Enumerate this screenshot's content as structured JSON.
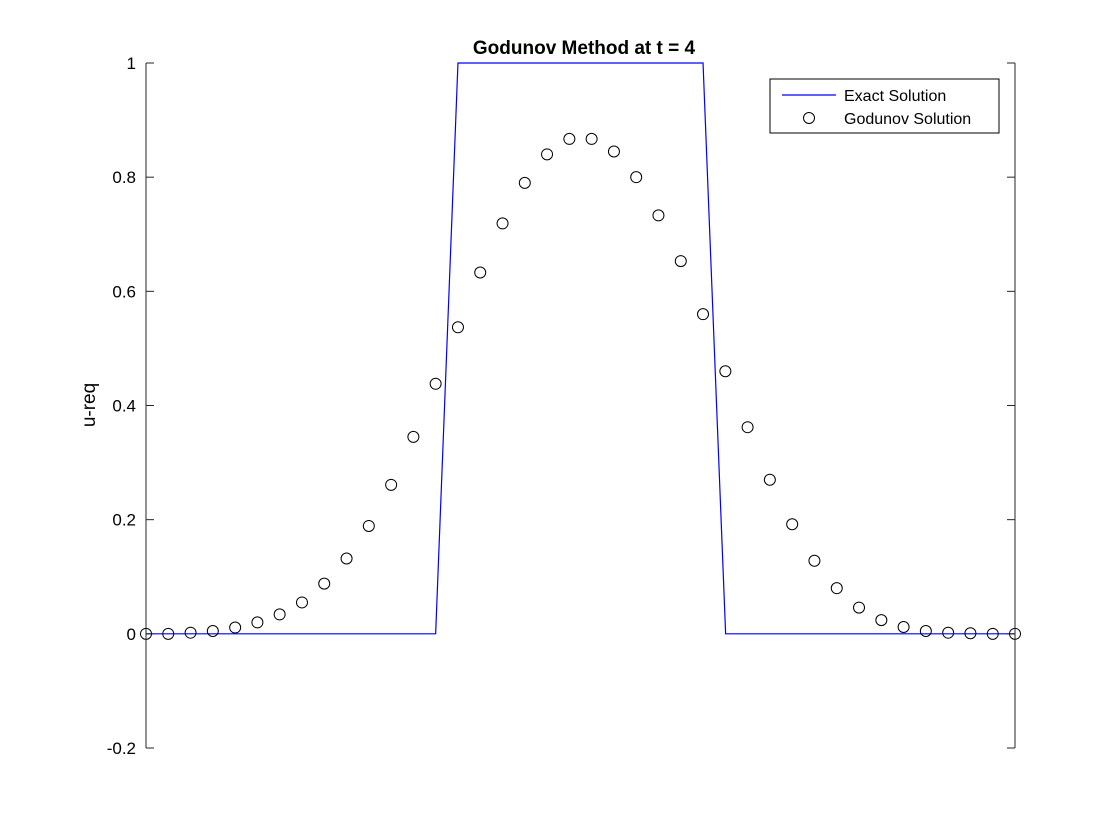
{
  "chart_data": {
    "type": "line",
    "title": "Godunov Method at t = 4",
    "xlabel": "",
    "ylabel": "u-req",
    "xlim": [
      0,
      1
    ],
    "ylim": [
      -0.2,
      1
    ],
    "yticks": [
      -0.2,
      0,
      0.2,
      0.4,
      0.6,
      0.8,
      1
    ],
    "ytick_labels": [
      "-0.2",
      "0",
      "0.2",
      "0.4",
      "0.6",
      "0.8",
      "1"
    ],
    "grid": false,
    "legend_position": "top-right",
    "series": [
      {
        "name": "Exact Solution",
        "style": "line",
        "color": "#0000ff",
        "x": [
          0.0,
          0.3333,
          0.359,
          0.641,
          0.667,
          1.0
        ],
        "y": [
          0,
          0,
          1,
          1,
          0,
          0
        ]
      },
      {
        "name": "Godunov Solution",
        "style": "circle-markers",
        "color": "#000000",
        "x": [
          0.0,
          0.0256,
          0.0513,
          0.0769,
          0.1026,
          0.1282,
          0.1538,
          0.1795,
          0.2051,
          0.2308,
          0.2564,
          0.2821,
          0.3077,
          0.3333,
          0.359,
          0.3846,
          0.4103,
          0.4359,
          0.4615,
          0.4872,
          0.5128,
          0.5385,
          0.5641,
          0.5897,
          0.6154,
          0.641,
          0.6667,
          0.6923,
          0.7179,
          0.7436,
          0.7692,
          0.7949,
          0.8205,
          0.8462,
          0.8718,
          0.8974,
          0.9231,
          0.9487,
          0.9744,
          1.0
        ],
        "y": [
          0.0,
          0.0,
          0.002,
          0.005,
          0.011,
          0.02,
          0.034,
          0.055,
          0.088,
          0.132,
          0.189,
          0.261,
          0.345,
          0.438,
          0.537,
          0.633,
          0.719,
          0.79,
          0.84,
          0.867,
          0.867,
          0.845,
          0.8,
          0.733,
          0.653,
          0.56,
          0.46,
          0.362,
          0.27,
          0.192,
          0.128,
          0.08,
          0.046,
          0.024,
          0.012,
          0.005,
          0.002,
          0.001,
          0.0,
          0.0
        ]
      }
    ]
  }
}
